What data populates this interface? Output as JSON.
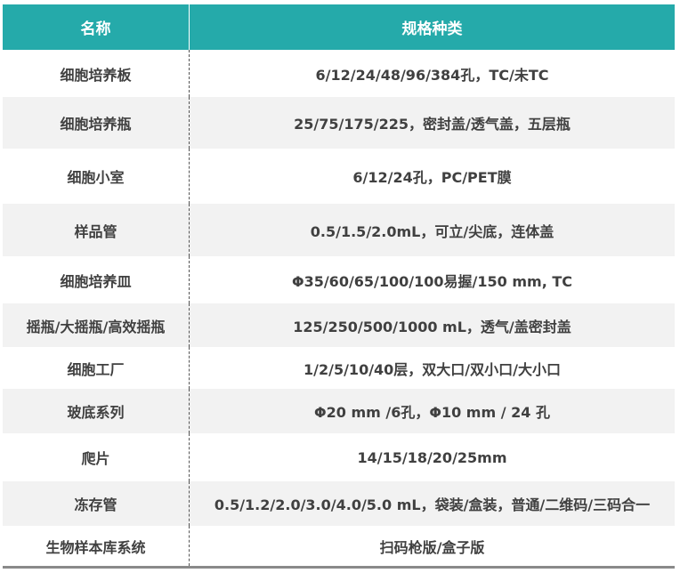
{
  "header": {
    "name": "名称",
    "spec": "规格种类"
  },
  "rows": [
    {
      "name": "细胞培养板",
      "spec": "6/12/24/48/96/384孔，TC/未TC"
    },
    {
      "name": "细胞培养瓶",
      "spec": "25/75/175/225，密封盖/透气盖，五层瓶"
    },
    {
      "name": "细胞小室",
      "spec": "6/12/24孔，PC/PET膜"
    },
    {
      "name": "样品管",
      "spec": "0.5/1.5/2.0mL，可立/尖底，连体盖"
    },
    {
      "name": "细胞培养皿",
      "spec": "Φ35/60/65/100/100易握/150 mm, TC"
    },
    {
      "name": "摇瓶/大摇瓶/高效摇瓶",
      "spec": "125/250/500/1000 mL，透气/盖密封盖"
    },
    {
      "name": "细胞工厂",
      "spec": "1/2/5/10/40层，双大口/双小口/大小口"
    },
    {
      "name": "玻底系列",
      "spec": "Φ20 mm /6孔，Φ10 mm / 24 孔"
    },
    {
      "name": "爬片",
      "spec": "14/15/18/20/25mm"
    },
    {
      "name": "冻存管",
      "spec": "0.5/1.2/2.0/3.0/4.0/5.0 mL，袋装/盒装，普通/二维码/三码合一"
    },
    {
      "name": "生物样本库系统",
      "spec": "扫码枪版/盒子版"
    }
  ],
  "colors": {
    "header": "#25aaaa",
    "alt_row": "#f2f2f2",
    "text": "#404040"
  }
}
